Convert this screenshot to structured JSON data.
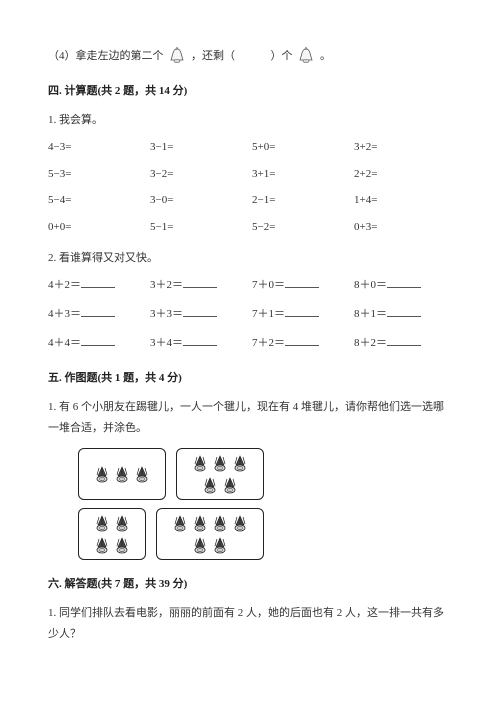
{
  "q4": {
    "prefix": "（4）拿走左边的第二个",
    "mid": "，还剩（",
    "after": "）个",
    "period": "。"
  },
  "sec4": {
    "title": "四. 计算题(共 2 题，共 14 分)",
    "sub1": "1. 我会算。",
    "grid1": [
      "4−3=",
      "3−1=",
      "5+0=",
      "3+2=",
      "5−3=",
      "3−2=",
      "3+1=",
      "2+2=",
      "5−4=",
      "3−0=",
      "2−1=",
      "1+4=",
      "0+0=",
      "5−1=",
      "5−2=",
      "0+3="
    ],
    "sub2": "2. 看谁算得又对又快。",
    "grid2": [
      "4＋2＝",
      "3＋2＝",
      "7＋0＝",
      "8＋0＝",
      "4＋3＝",
      "3＋3＝",
      "7＋1＝",
      "8＋1＝",
      "4＋4＝",
      "3＋4＝",
      "7＋2＝",
      "8＋2＝"
    ]
  },
  "sec5": {
    "title": "五. 作图题(共 1 题，共 4 分)",
    "q1": "1. 有 6 个小朋友在踢毽儿，一人一个毽儿，现在有 4 堆毽儿，请你帮他们选一选哪一堆合适，并涂色。",
    "piles": [
      {
        "count": 3,
        "cols": 3
      },
      {
        "count": 5,
        "cols": 3
      },
      {
        "count": 4,
        "cols": 2
      },
      {
        "count": 6,
        "cols": 3
      }
    ]
  },
  "sec6": {
    "title": "六. 解答题(共 7 题，共 39 分)",
    "q1": "1. 同学们排队去看电影，丽丽的前面有 2 人，她的后面也有 2 人，这一排一共有多少人？"
  },
  "colors": {
    "text": "#333333",
    "border": "#222222",
    "blank": "#555555",
    "bg": "#ffffff"
  }
}
